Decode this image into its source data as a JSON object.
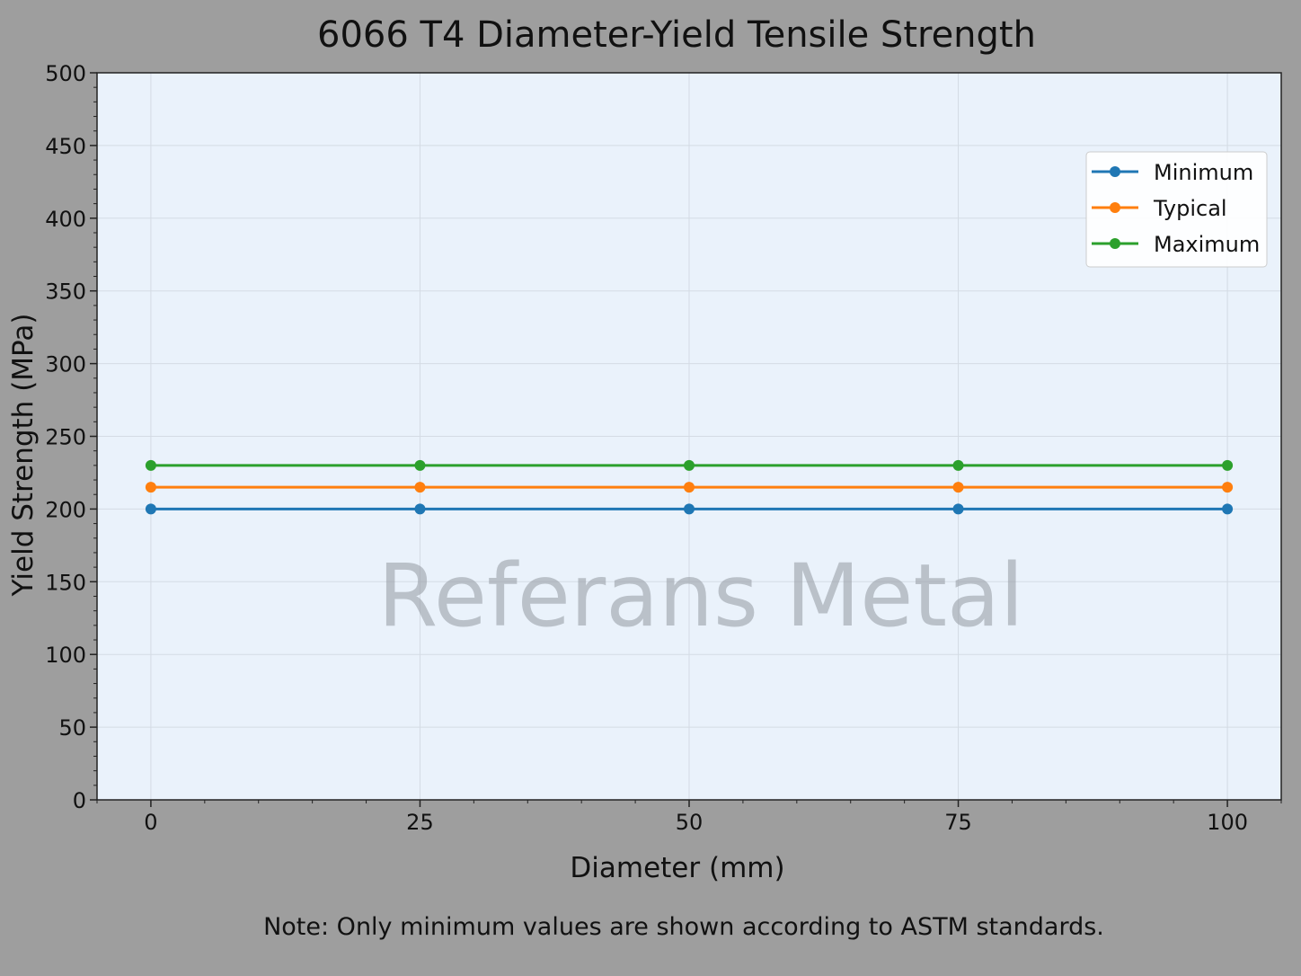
{
  "chart_data": {
    "type": "line",
    "title": "6066 T4 Diameter-Yield Tensile Strength",
    "xlabel": "Diameter (mm)",
    "ylabel": "Yield Strength (MPa)",
    "x": [
      0,
      25,
      50,
      75,
      100
    ],
    "xlim": [
      -5,
      105
    ],
    "ylim": [
      0,
      500
    ],
    "xticks": [
      0,
      25,
      50,
      75,
      100
    ],
    "yticks": [
      0,
      50,
      100,
      150,
      200,
      250,
      300,
      350,
      400,
      450,
      500
    ],
    "grid": true,
    "legend_position": "top-right",
    "series": [
      {
        "name": "Minimum",
        "values": [
          200,
          200,
          200,
          200,
          200
        ],
        "color": "#1f77b4"
      },
      {
        "name": "Typical",
        "values": [
          215,
          215,
          215,
          215,
          215
        ],
        "color": "#ff7f0e"
      },
      {
        "name": "Maximum",
        "values": [
          230,
          230,
          230,
          230,
          230
        ],
        "color": "#2ca02c"
      }
    ],
    "note": "Note: Only minimum values are shown according to ASTM standards.",
    "watermark": "Referans Metal"
  },
  "colors": {
    "figure_background": "#9e9e9e",
    "plot_background": "#eaf2fb"
  }
}
